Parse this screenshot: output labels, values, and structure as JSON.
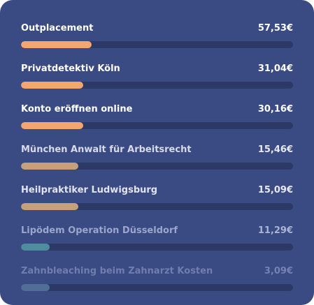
{
  "items": [
    {
      "label": "Outplacement",
      "value": "57,53€",
      "progress": 0.26,
      "fill_color": "#f3a66f",
      "text_color": "#ffffff",
      "value_color": "#ffffff"
    },
    {
      "label": "Privatdetektiv Köln",
      "value": "31,04€",
      "progress": 0.23,
      "fill_color": "#f3a66f",
      "text_color": "#ffffff",
      "value_color": "#ffffff"
    },
    {
      "label": "Konto eröffnen online",
      "value": "30,16€",
      "progress": 0.23,
      "fill_color": "#f3a66f",
      "text_color": "#ffffff",
      "value_color": "#ffffff"
    },
    {
      "label": "München Anwalt für Arbeitsrecht",
      "value": "15,46€",
      "progress": 0.21,
      "fill_color": "#c5a07a",
      "text_color": "#d6daea",
      "value_color": "#e6e9f3"
    },
    {
      "label": "Heilpraktiker Ludwigsburg",
      "value": "15,09€",
      "progress": 0.21,
      "fill_color": "#c5a07a",
      "text_color": "#e0e4f0",
      "value_color": "#e6e9f3"
    },
    {
      "label": "Lipödem Operation Düsseldorf",
      "value": "11,29€",
      "progress": 0.105,
      "fill_color": "#4e8c9e",
      "text_color": "#9aa6cc",
      "value_color": "#aab4d6"
    },
    {
      "label": "Zahnbleaching beim Zahnarzt Kosten",
      "value": "3,09€",
      "progress": 0.105,
      "fill_color": "#4f6f98",
      "text_color": "#6e7eae",
      "value_color": "#7483b3"
    }
  ]
}
